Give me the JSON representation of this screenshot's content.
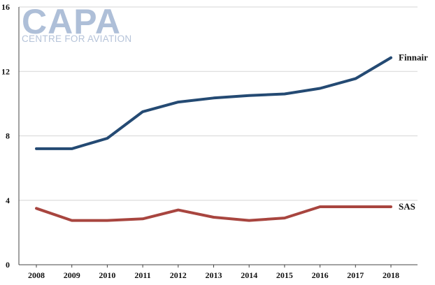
{
  "logo": {
    "main": "CAPA",
    "sub": "CENTRE FOR AVIATION"
  },
  "chart_data": {
    "type": "line",
    "title": "",
    "xlabel": "",
    "ylabel": "",
    "categories": [
      "2008",
      "2009",
      "2010",
      "2011",
      "2012",
      "2013",
      "2014",
      "2015",
      "2016",
      "2017",
      "2018"
    ],
    "ylim": [
      0,
      16
    ],
    "yticks": [
      "0",
      "4",
      "8",
      "12",
      "16"
    ],
    "grid": "horizontal",
    "legend": "labels at right end of lines",
    "series": [
      {
        "name": "Finnair",
        "color": "#244a73",
        "values": [
          7.2,
          7.2,
          7.85,
          9.5,
          10.1,
          10.35,
          10.5,
          10.6,
          10.95,
          11.55,
          12.85
        ]
      },
      {
        "name": "SAS",
        "color": "#a8453f",
        "values": [
          3.5,
          2.75,
          2.75,
          2.85,
          3.4,
          2.95,
          2.75,
          2.9,
          3.6,
          3.6,
          3.6
        ]
      }
    ]
  }
}
